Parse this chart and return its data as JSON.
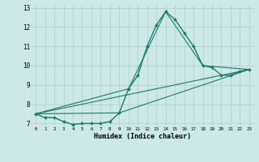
{
  "title": "",
  "xlabel": "Humidex (Indice chaleur)",
  "ylabel": "",
  "bg_color": "#cce8e8",
  "grid_color": "#b0cccc",
  "line_color": "#1a7a6e",
  "x_min": 0,
  "x_max": 23,
  "y_min": 7,
  "y_max": 13,
  "x_ticks": [
    0,
    1,
    2,
    3,
    4,
    5,
    6,
    7,
    8,
    9,
    10,
    11,
    12,
    13,
    14,
    15,
    16,
    17,
    18,
    19,
    20,
    21,
    22,
    23
  ],
  "y_ticks": [
    7,
    8,
    9,
    10,
    11,
    12,
    13
  ],
  "series": [
    {
      "x": [
        0,
        1,
        2,
        3,
        4,
        5,
        6,
        7,
        8,
        9,
        10,
        11,
        12,
        13,
        14,
        15,
        16,
        17,
        18,
        19,
        20,
        21,
        22,
        23
      ],
      "y": [
        7.5,
        7.3,
        7.3,
        7.1,
        6.95,
        7.0,
        7.0,
        7.0,
        7.1,
        7.55,
        8.8,
        9.5,
        11.0,
        12.1,
        12.8,
        12.4,
        11.7,
        11.0,
        10.0,
        9.9,
        9.5,
        9.5,
        9.7,
        9.8
      ],
      "marker": "D",
      "markersize": 2.0,
      "linewidth": 1.0
    },
    {
      "x": [
        0,
        10,
        14,
        18,
        23
      ],
      "y": [
        7.5,
        8.8,
        12.8,
        10.0,
        9.8
      ],
      "marker": null,
      "linewidth": 0.8
    },
    {
      "x": [
        0,
        23
      ],
      "y": [
        7.5,
        9.8
      ],
      "marker": null,
      "linewidth": 0.8
    },
    {
      "x": [
        0,
        9,
        23
      ],
      "y": [
        7.5,
        7.55,
        9.8
      ],
      "marker": null,
      "linewidth": 0.8
    }
  ]
}
